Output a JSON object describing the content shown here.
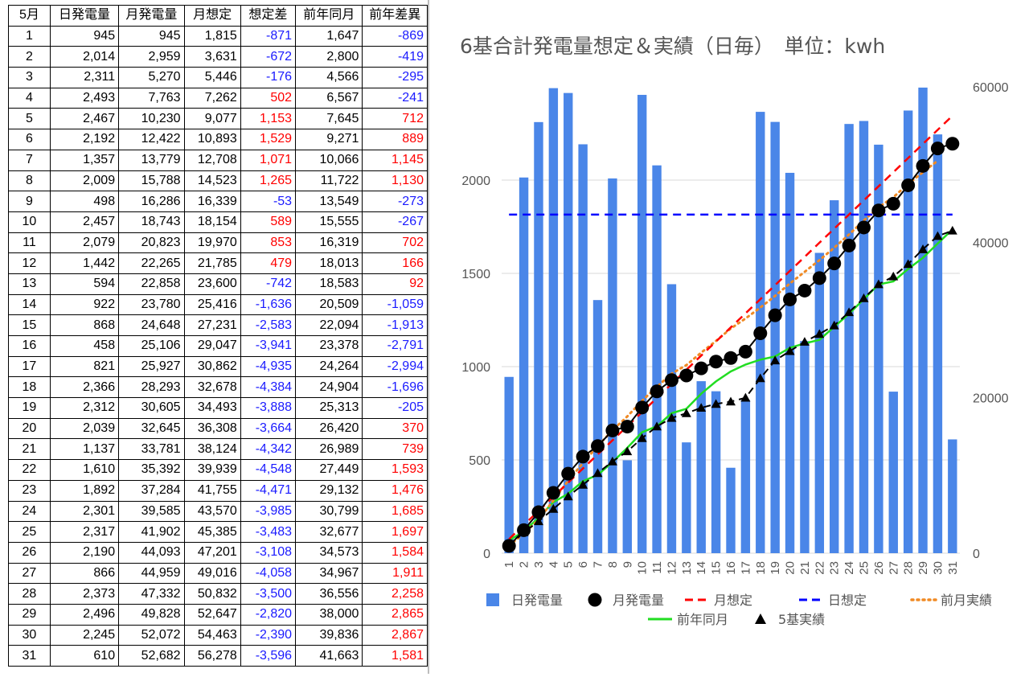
{
  "table": {
    "headers": [
      "5月",
      "日発電量",
      "月発電量",
      "月想定",
      "想定差",
      "前年同月",
      "前年差異"
    ],
    "rows": [
      [
        "1",
        "945",
        "945",
        "1,815",
        "-871",
        "1,647",
        "-869"
      ],
      [
        "2",
        "2,014",
        "2,959",
        "3,631",
        "-672",
        "2,800",
        "-419"
      ],
      [
        "3",
        "2,311",
        "5,270",
        "5,446",
        "-176",
        "4,566",
        "-295"
      ],
      [
        "4",
        "2,493",
        "7,763",
        "7,262",
        "502",
        "6,567",
        "-241"
      ],
      [
        "5",
        "2,467",
        "10,230",
        "9,077",
        "1,153",
        "7,645",
        "712"
      ],
      [
        "6",
        "2,192",
        "12,422",
        "10,893",
        "1,529",
        "9,271",
        "889"
      ],
      [
        "7",
        "1,357",
        "13,779",
        "12,708",
        "1,071",
        "10,066",
        "1,145"
      ],
      [
        "8",
        "2,009",
        "15,788",
        "14,523",
        "1,265",
        "11,722",
        "1,130"
      ],
      [
        "9",
        "498",
        "16,286",
        "16,339",
        "-53",
        "13,549",
        "-273"
      ],
      [
        "10",
        "2,457",
        "18,743",
        "18,154",
        "589",
        "15,555",
        "-267"
      ],
      [
        "11",
        "2,079",
        "20,823",
        "19,970",
        "853",
        "16,319",
        "702"
      ],
      [
        "12",
        "1,442",
        "22,265",
        "21,785",
        "479",
        "18,013",
        "166"
      ],
      [
        "13",
        "594",
        "22,858",
        "23,600",
        "-742",
        "18,583",
        "92"
      ],
      [
        "14",
        "922",
        "23,780",
        "25,416",
        "-1,636",
        "20,509",
        "-1,059"
      ],
      [
        "15",
        "868",
        "24,648",
        "27,231",
        "-2,583",
        "22,094",
        "-1,913"
      ],
      [
        "16",
        "458",
        "25,106",
        "29,047",
        "-3,941",
        "23,378",
        "-2,791"
      ],
      [
        "17",
        "821",
        "25,927",
        "30,862",
        "-4,935",
        "24,264",
        "-2,994"
      ],
      [
        "18",
        "2,366",
        "28,293",
        "32,678",
        "-4,384",
        "24,904",
        "-1,696"
      ],
      [
        "19",
        "2,312",
        "30,605",
        "34,493",
        "-3,888",
        "25,313",
        "-205"
      ],
      [
        "20",
        "2,039",
        "32,645",
        "36,308",
        "-3,664",
        "26,420",
        "370"
      ],
      [
        "21",
        "1,137",
        "33,781",
        "38,124",
        "-4,342",
        "26,989",
        "739"
      ],
      [
        "22",
        "1,610",
        "35,392",
        "39,939",
        "-4,548",
        "27,449",
        "1,593"
      ],
      [
        "23",
        "1,892",
        "37,284",
        "41,755",
        "-4,471",
        "29,132",
        "1,476"
      ],
      [
        "24",
        "2,301",
        "39,585",
        "43,570",
        "-3,985",
        "30,799",
        "1,685"
      ],
      [
        "25",
        "2,317",
        "41,902",
        "45,385",
        "-3,483",
        "32,677",
        "1,697"
      ],
      [
        "26",
        "2,190",
        "44,093",
        "47,201",
        "-3,108",
        "34,573",
        "1,584"
      ],
      [
        "27",
        "866",
        "44,959",
        "49,016",
        "-4,058",
        "34,967",
        "1,911"
      ],
      [
        "28",
        "2,373",
        "47,332",
        "50,832",
        "-3,500",
        "36,556",
        "2,258"
      ],
      [
        "29",
        "2,496",
        "49,828",
        "52,647",
        "-2,820",
        "38,000",
        "2,865"
      ],
      [
        "30",
        "2,245",
        "52,072",
        "54,463",
        "-2,390",
        "39,836",
        "2,867"
      ],
      [
        "31",
        "610",
        "52,682",
        "56,278",
        "-3,596",
        "41,663",
        "1,581"
      ]
    ]
  },
  "colors": {
    "bar": "#4a86e8",
    "monthly": "#000000",
    "monthly_plan": "#ff0000",
    "daily_plan": "#0000ff",
    "prev_month": "#f08a24",
    "prev_year": "#22dd22",
    "five_units": "#000000",
    "negative_text": "#1a1aff",
    "positive_text": "#ff0000",
    "grid": "#d9d9d9",
    "axis_text": "#555555"
  },
  "chart_data": {
    "type": "bar",
    "title": "6基合計発電量想定＆実績（日毎）　単位：kwh",
    "categories": [
      "1",
      "2",
      "3",
      "4",
      "5",
      "6",
      "7",
      "8",
      "9",
      "10",
      "11",
      "12",
      "13",
      "14",
      "15",
      "16",
      "17",
      "18",
      "19",
      "20",
      "21",
      "22",
      "23",
      "24",
      "25",
      "26",
      "27",
      "28",
      "29",
      "30",
      "31"
    ],
    "y_left": {
      "min": 0,
      "max": 2500,
      "ticks": [
        "0",
        "500",
        "1000",
        "1500",
        "2000"
      ]
    },
    "y_right": {
      "min": 0,
      "max": 60000,
      "ticks": [
        "0",
        "20000",
        "40000",
        "60000"
      ]
    },
    "grid": true,
    "legend_position": "bottom",
    "series": [
      {
        "name": "日発電量",
        "type": "bar",
        "axis": "left",
        "values": [
          945,
          2014,
          2311,
          2493,
          2467,
          2192,
          1357,
          2009,
          498,
          2457,
          2079,
          1442,
          594,
          922,
          868,
          458,
          821,
          2366,
          2312,
          2039,
          1137,
          1610,
          1892,
          2301,
          2317,
          2190,
          866,
          2373,
          2496,
          2245,
          610
        ]
      },
      {
        "name": "月発電量",
        "type": "line-markers",
        "axis": "right",
        "marker": "circle",
        "values": [
          945,
          2959,
          5270,
          7763,
          10230,
          12422,
          13779,
          15788,
          16286,
          18743,
          20823,
          22265,
          22858,
          23780,
          24648,
          25106,
          25927,
          28293,
          30605,
          32645,
          33781,
          35392,
          37284,
          39585,
          41902,
          44093,
          44959,
          47332,
          49828,
          52072,
          52682
        ]
      },
      {
        "name": "月想定",
        "type": "line-dashed",
        "axis": "right",
        "values": [
          1815,
          3631,
          5446,
          7262,
          9077,
          10893,
          12708,
          14523,
          16339,
          18154,
          19970,
          21785,
          23600,
          25416,
          27231,
          29047,
          30862,
          32678,
          34493,
          36308,
          38124,
          39939,
          41755,
          43570,
          45385,
          47201,
          49016,
          50832,
          52647,
          54463,
          56278
        ]
      },
      {
        "name": "日想定",
        "type": "line-dashed",
        "axis": "left",
        "values": [
          1815,
          1815,
          1815,
          1815,
          1815,
          1815,
          1815,
          1815,
          1815,
          1815,
          1815,
          1815,
          1815,
          1815,
          1815,
          1815,
          1815,
          1815,
          1815,
          1815,
          1815,
          1815,
          1815,
          1815,
          1815,
          1815,
          1815,
          1815,
          1815,
          1815,
          1815
        ]
      },
      {
        "name": "前月実績",
        "type": "line-dotted",
        "axis": "right",
        "values": [
          1000,
          2500,
          4300,
          6800,
          9300,
          11600,
          13800,
          15800,
          17600,
          19600,
          21400,
          23100,
          24200,
          25800,
          27300,
          28900,
          30200,
          31600,
          33100,
          34700,
          36200,
          37700,
          39300,
          41000,
          42800,
          44500,
          45800,
          47500,
          49000,
          50500,
          null
        ]
      },
      {
        "name": "前年同月",
        "type": "line",
        "axis": "right",
        "values": [
          1647,
          2800,
          4566,
          6567,
          7645,
          9271,
          10066,
          11722,
          13549,
          15555,
          16319,
          18013,
          18583,
          20509,
          22094,
          23378,
          24264,
          24904,
          25313,
          26420,
          26989,
          27449,
          29132,
          30799,
          32677,
          34573,
          34967,
          36556,
          38000,
          39836,
          41663
        ]
      },
      {
        "name": "5基実績",
        "type": "line-dashed-triangles",
        "axis": "right",
        "values": [
          900,
          2700,
          4100,
          5700,
          7300,
          8800,
          10300,
          11800,
          13100,
          14800,
          16300,
          17400,
          18000,
          18700,
          19200,
          19500,
          20000,
          22500,
          24800,
          26000,
          27200,
          28200,
          29300,
          31000,
          32800,
          34600,
          35600,
          37200,
          39100,
          40800,
          41500
        ]
      }
    ]
  }
}
